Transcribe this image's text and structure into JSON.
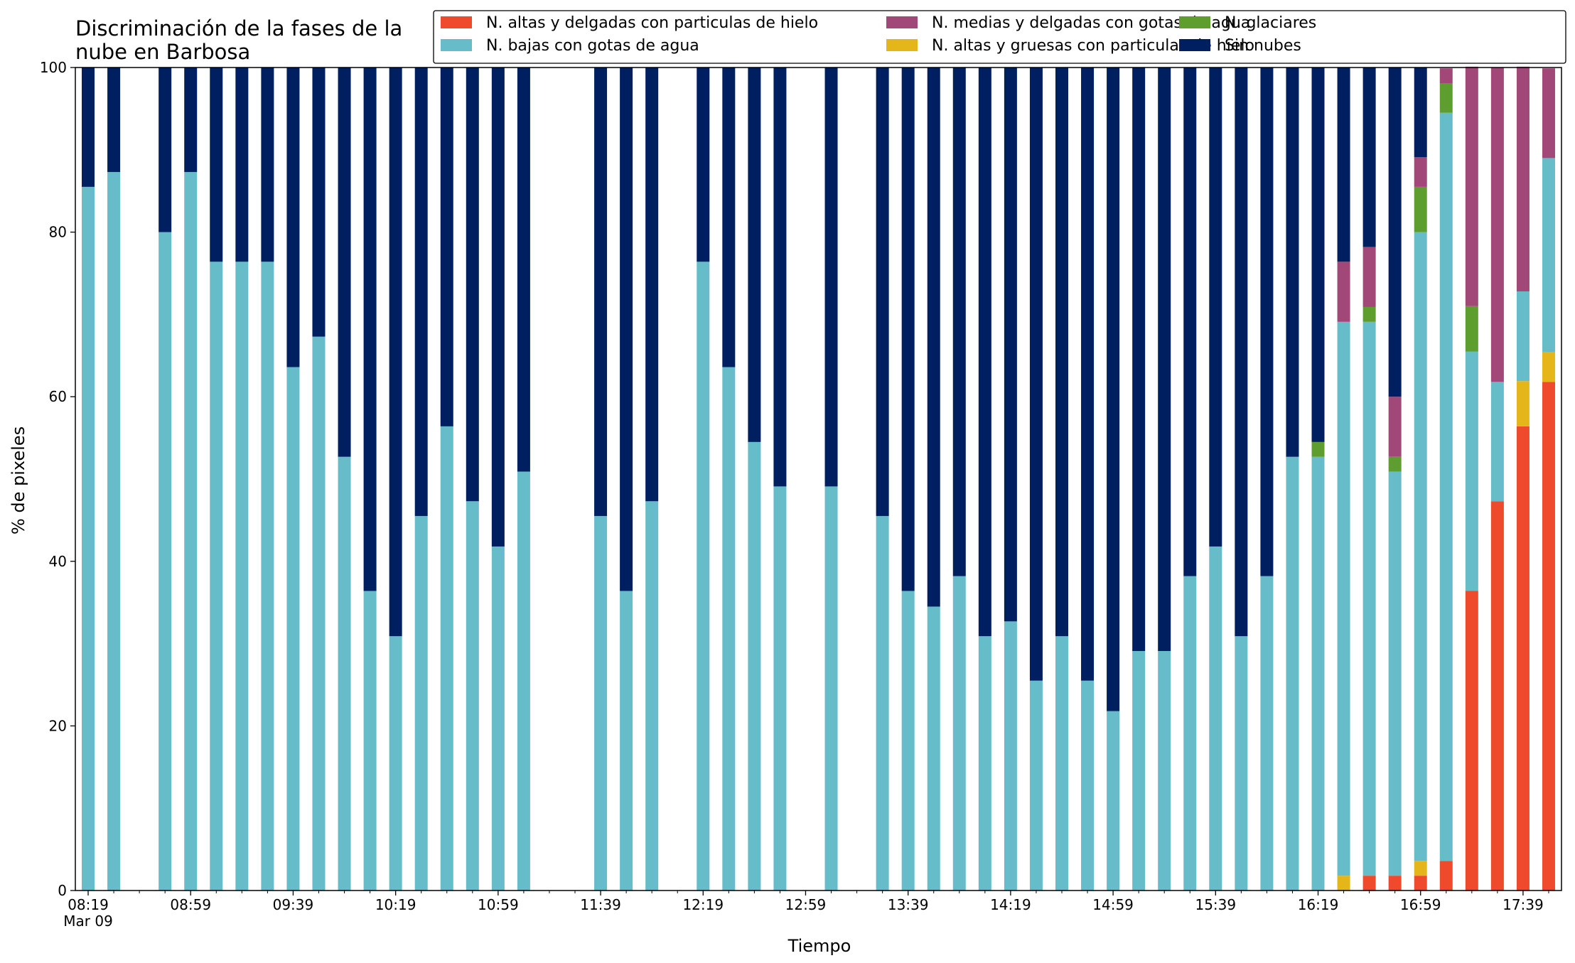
{
  "chart_data": {
    "type": "bar",
    "stacked": true,
    "title_lines": [
      "Discriminación de la fases de la",
      "nube en Barbosa"
    ],
    "xlabel": "Tiempo",
    "ylabel": "% de pixeles",
    "ylim": [
      0,
      100
    ],
    "yticks": [
      "0",
      "20",
      "40",
      "60",
      "80",
      "100"
    ],
    "x_start": "08:19",
    "x_step_minutes": 10,
    "x_count": 58,
    "x_tick_labels": [
      "08:19",
      "08:59",
      "09:39",
      "10:19",
      "10:59",
      "11:39",
      "12:19",
      "12:59",
      "13:39",
      "14:19",
      "14:59",
      "15:39",
      "16:19",
      "16:59",
      "17:39"
    ],
    "x_date_label": "Mar 09",
    "legend_position": "top-right",
    "grid": false,
    "series": [
      {
        "name": "N. altas y delgadas con particulas de hielo",
        "color": "#ef4a2b"
      },
      {
        "name": "N. altas y gruesas con particulas de hielo",
        "color": "#e5b61a"
      },
      {
        "name": "N. bajas con gotas de agua",
        "color": "#66bdc9"
      },
      {
        "name": "N. glaciares",
        "color": "#5e9e2e"
      },
      {
        "name": "N. medias y delgadas con gotas de agua",
        "color": "#a24878"
      },
      {
        "name": "Sin nubes",
        "color": "#001f60"
      }
    ],
    "legend_order": [
      0,
      2,
      4,
      1,
      3,
      5
    ],
    "bars": [
      {
        "time": "08:19",
        "values": [
          0,
          0,
          85.5,
          0,
          0,
          14.5
        ]
      },
      {
        "time": "08:29",
        "values": [
          0,
          0,
          87.3,
          0,
          0,
          12.7
        ]
      },
      {
        "time": "08:39",
        "values": null
      },
      {
        "time": "08:49",
        "values": [
          0,
          0,
          80.0,
          0,
          0,
          20.0
        ]
      },
      {
        "time": "08:59",
        "values": [
          0,
          0,
          87.3,
          0,
          0,
          12.7
        ]
      },
      {
        "time": "09:09",
        "values": [
          0,
          0,
          76.4,
          0,
          0,
          23.6
        ]
      },
      {
        "time": "09:19",
        "values": [
          0,
          0,
          76.4,
          0,
          0,
          23.6
        ]
      },
      {
        "time": "09:29",
        "values": [
          0,
          0,
          76.4,
          0,
          0,
          23.6
        ]
      },
      {
        "time": "09:39",
        "values": [
          0,
          0,
          63.6,
          0,
          0,
          36.4
        ]
      },
      {
        "time": "09:49",
        "values": [
          0,
          0,
          67.3,
          0,
          0,
          32.7
        ]
      },
      {
        "time": "09:59",
        "values": [
          0,
          0,
          52.7,
          0,
          0,
          47.3
        ]
      },
      {
        "time": "10:09",
        "values": [
          0,
          0,
          36.4,
          0,
          0,
          63.6
        ]
      },
      {
        "time": "10:19",
        "values": [
          0,
          0,
          30.9,
          0,
          0,
          69.1
        ]
      },
      {
        "time": "10:29",
        "values": [
          0,
          0,
          45.5,
          0,
          0,
          54.5
        ]
      },
      {
        "time": "10:39",
        "values": [
          0,
          0,
          56.4,
          0,
          0,
          43.6
        ]
      },
      {
        "time": "10:49",
        "values": [
          0,
          0,
          47.3,
          0,
          0,
          52.7
        ]
      },
      {
        "time": "10:59",
        "values": [
          0,
          0,
          41.8,
          0,
          0,
          58.2
        ]
      },
      {
        "time": "11:09",
        "values": [
          0,
          0,
          50.9,
          0,
          0,
          49.1
        ]
      },
      {
        "time": "11:19",
        "values": null
      },
      {
        "time": "11:29",
        "values": null
      },
      {
        "time": "11:39",
        "values": [
          0,
          0,
          45.5,
          0,
          0,
          54.5
        ]
      },
      {
        "time": "11:49",
        "values": [
          0,
          0,
          36.4,
          0,
          0,
          63.6
        ]
      },
      {
        "time": "11:59",
        "values": [
          0,
          0,
          47.3,
          0,
          0,
          52.7
        ]
      },
      {
        "time": "12:09",
        "values": null
      },
      {
        "time": "12:19",
        "values": [
          0,
          0,
          76.4,
          0,
          0,
          23.6
        ]
      },
      {
        "time": "12:29",
        "values": [
          0,
          0,
          63.6,
          0,
          0,
          36.4
        ]
      },
      {
        "time": "12:39",
        "values": [
          0,
          0,
          54.5,
          0,
          0,
          45.5
        ]
      },
      {
        "time": "12:49",
        "values": [
          0,
          0,
          49.1,
          0,
          0,
          50.9
        ]
      },
      {
        "time": "12:59",
        "values": null
      },
      {
        "time": "13:09",
        "values": [
          0,
          0,
          49.1,
          0,
          0,
          50.9
        ]
      },
      {
        "time": "13:19",
        "values": null
      },
      {
        "time": "13:29",
        "values": [
          0,
          0,
          45.5,
          0,
          0,
          54.5
        ]
      },
      {
        "time": "13:39",
        "values": [
          0,
          0,
          36.4,
          0,
          0,
          63.6
        ]
      },
      {
        "time": "13:49",
        "values": [
          0,
          0,
          34.5,
          0,
          0,
          65.5
        ]
      },
      {
        "time": "13:59",
        "values": [
          0,
          0,
          38.2,
          0,
          0,
          61.8
        ]
      },
      {
        "time": "14:09",
        "values": [
          0,
          0,
          30.9,
          0,
          0,
          69.1
        ]
      },
      {
        "time": "14:19",
        "values": [
          0,
          0,
          32.7,
          0,
          0,
          67.3
        ]
      },
      {
        "time": "14:29",
        "values": [
          0,
          0,
          25.5,
          0,
          0,
          74.5
        ]
      },
      {
        "time": "14:39",
        "values": [
          0,
          0,
          30.9,
          0,
          0,
          69.1
        ]
      },
      {
        "time": "14:49",
        "values": [
          0,
          0,
          25.5,
          0,
          0,
          74.5
        ]
      },
      {
        "time": "14:59",
        "values": [
          0,
          0,
          21.8,
          0,
          0,
          78.2
        ]
      },
      {
        "time": "15:09",
        "values": [
          0,
          0,
          29.1,
          0,
          0,
          70.9
        ]
      },
      {
        "time": "15:19",
        "values": [
          0,
          0,
          29.1,
          0,
          0,
          70.9
        ]
      },
      {
        "time": "15:29",
        "values": [
          0,
          0,
          38.2,
          0,
          0,
          61.8
        ]
      },
      {
        "time": "15:39",
        "values": [
          0,
          0,
          41.8,
          0,
          0,
          58.2
        ]
      },
      {
        "time": "15:49",
        "values": [
          0,
          0,
          30.9,
          0,
          0,
          69.1
        ]
      },
      {
        "time": "15:59",
        "values": [
          0,
          0,
          38.2,
          0,
          0,
          61.8
        ]
      },
      {
        "time": "16:09",
        "values": [
          0,
          0,
          52.7,
          0,
          0,
          47.3
        ]
      },
      {
        "time": "16:19",
        "values": [
          0,
          0,
          52.7,
          1.8,
          0,
          45.5
        ]
      },
      {
        "time": "16:29",
        "values": [
          0,
          1.8,
          67.3,
          0,
          7.3,
          23.6
        ]
      },
      {
        "time": "16:39",
        "values": [
          1.8,
          0,
          67.3,
          1.8,
          7.3,
          21.8
        ]
      },
      {
        "time": "16:49",
        "values": [
          1.8,
          0,
          49.1,
          1.8,
          7.3,
          40.0
        ]
      },
      {
        "time": "16:59",
        "values": [
          1.8,
          1.8,
          76.4,
          5.5,
          3.6,
          10.9
        ]
      },
      {
        "time": "17:09",
        "values": [
          3.6,
          0,
          90.9,
          3.6,
          1.8,
          0
        ]
      },
      {
        "time": "17:19",
        "values": [
          36.4,
          0,
          29.1,
          5.5,
          29.1,
          0
        ]
      },
      {
        "time": "17:29",
        "values": [
          47.3,
          0,
          14.5,
          0,
          38.2,
          0
        ]
      },
      {
        "time": "17:39",
        "values": [
          56.4,
          5.5,
          10.9,
          0,
          27.3,
          0
        ]
      },
      {
        "time": "17:49",
        "values": [
          61.8,
          3.6,
          23.6,
          0,
          10.9,
          0
        ]
      }
    ]
  }
}
